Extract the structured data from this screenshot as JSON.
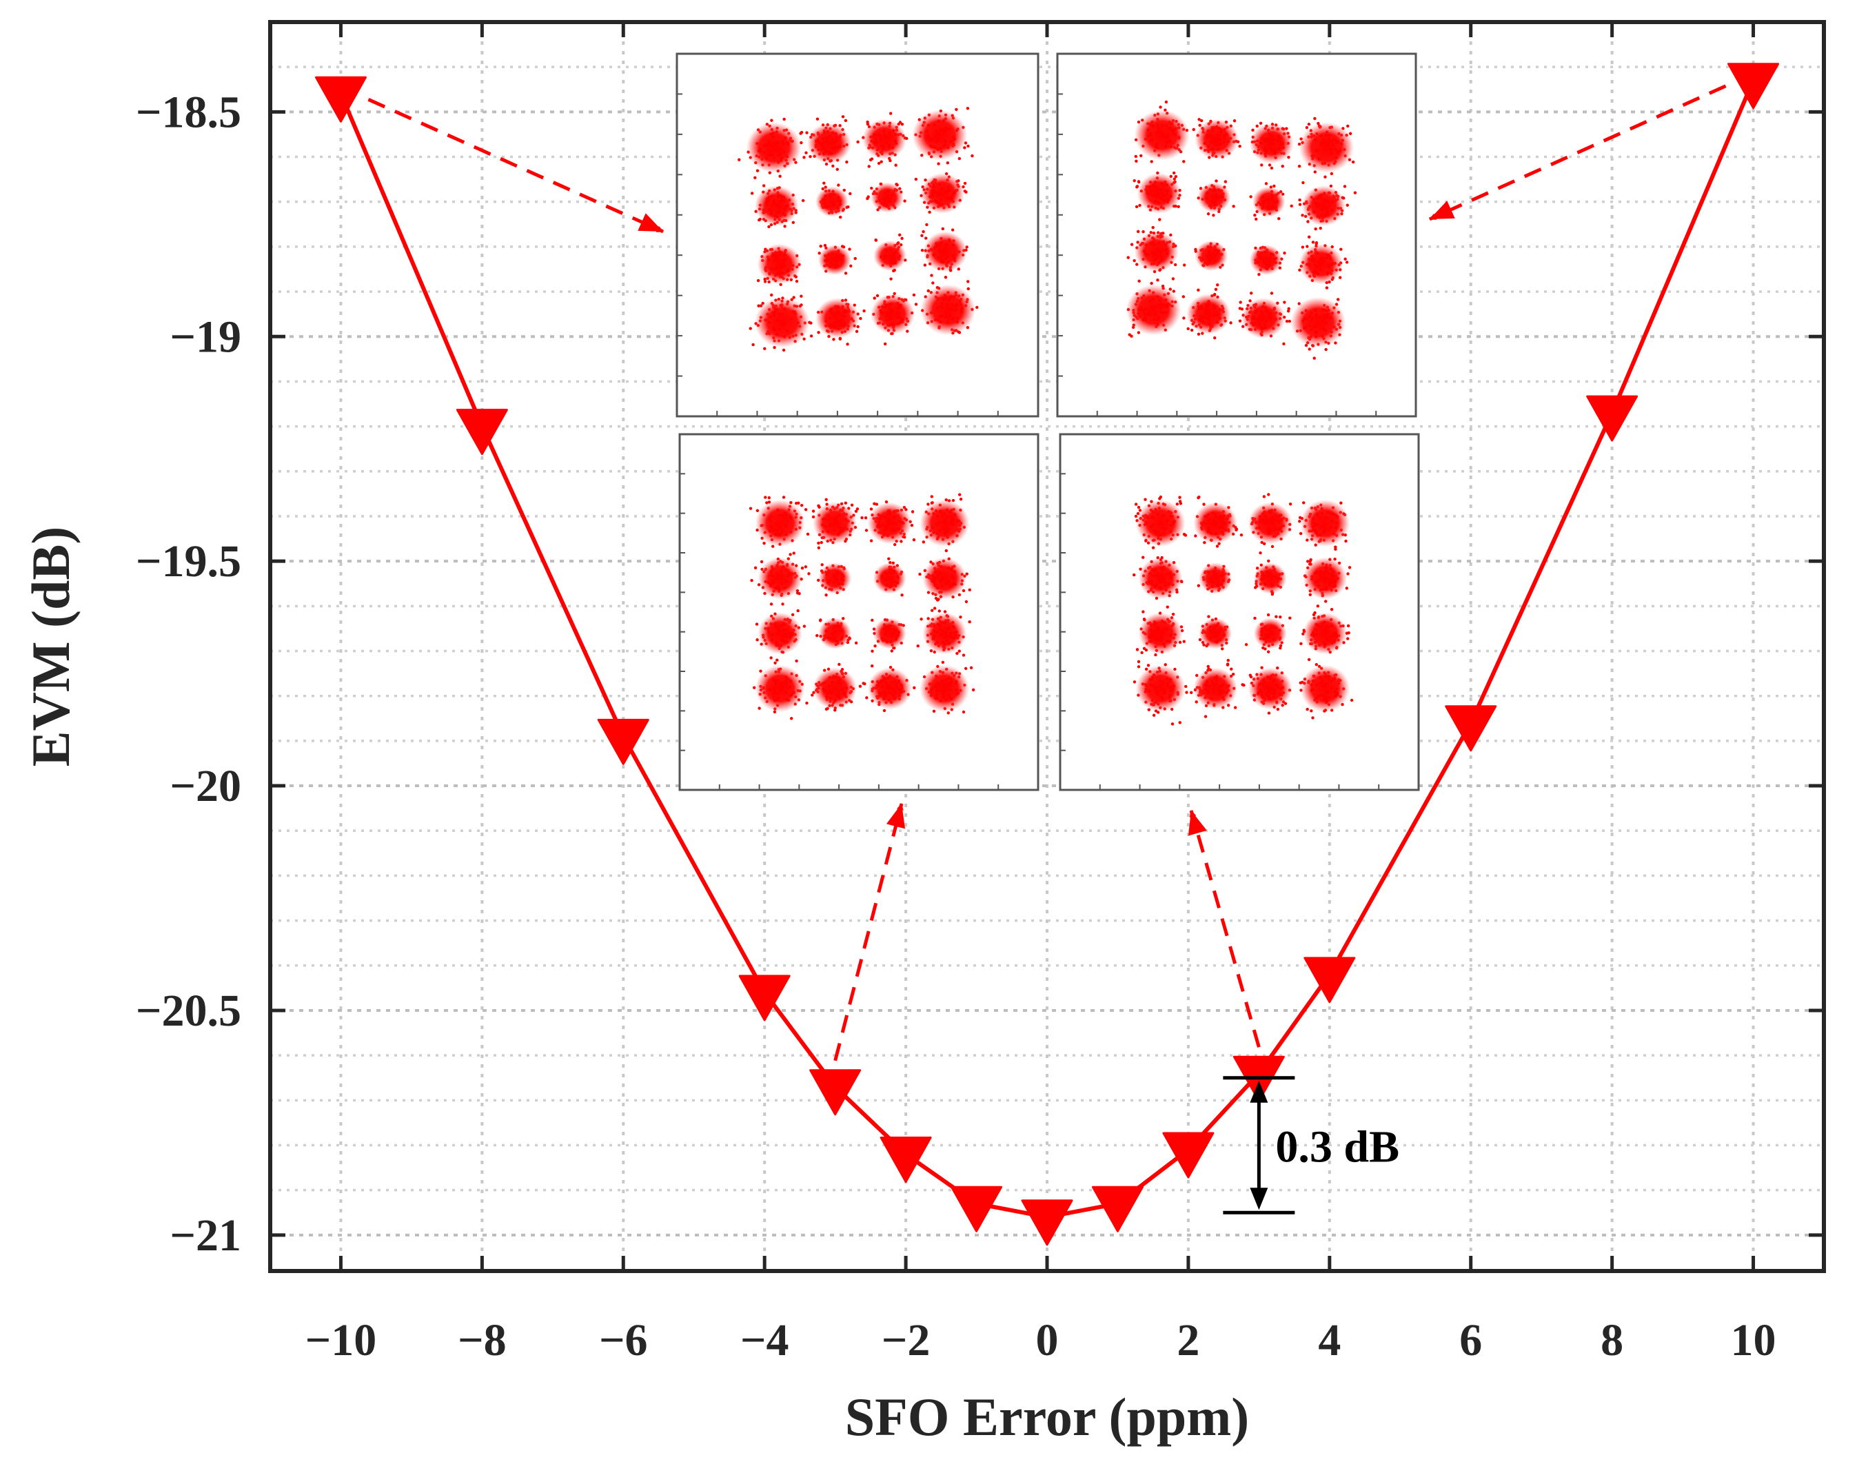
{
  "chart_data": {
    "type": "line",
    "title": "",
    "xlabel": "SFO Error (ppm)",
    "ylabel": "EVM (dB)",
    "xlim": [
      -11,
      11
    ],
    "ylim": [
      -21.08,
      -18.3
    ],
    "x_ticks": [
      -10,
      -8,
      -6,
      -4,
      -2,
      0,
      2,
      4,
      6,
      8,
      10
    ],
    "x_tick_labels": [
      "−10",
      "−8",
      "−6",
      "−4",
      "−2",
      "0",
      "2",
      "4",
      "6",
      "8",
      "10"
    ],
    "y_ticks": [
      -21,
      -20.5,
      -20,
      -19.5,
      -19,
      -18.5
    ],
    "y_tick_labels": [
      "−21",
      "−20.5",
      "−20",
      "−19.5",
      "−19",
      "−18.5"
    ],
    "grid": true,
    "series": [
      {
        "name": "EVM",
        "color": "#ff0000",
        "marker": "triangle-down",
        "x": [
          -10,
          -8,
          -6,
          -4,
          -3,
          -2,
          -1,
          0,
          1,
          2,
          3,
          4,
          6,
          8,
          10
        ],
        "y": [
          -18.46,
          -19.2,
          -19.89,
          -20.46,
          -20.67,
          -20.82,
          -20.93,
          -20.96,
          -20.93,
          -20.81,
          -20.64,
          -20.42,
          -19.86,
          -19.17,
          -18.43
        ]
      }
    ],
    "annotations": [
      {
        "type": "range",
        "label": "0.3 dB",
        "x": 3.0,
        "y_top": -20.65,
        "y_bottom": -20.95,
        "color": "#000000"
      }
    ],
    "insets": [
      {
        "name": "constellation-16qam",
        "points_to_x": -10,
        "points_to_y": -18.46,
        "distortion": "skewed"
      },
      {
        "name": "constellation-16qam",
        "points_to_x": 10,
        "points_to_y": -18.43,
        "distortion": "skewed"
      },
      {
        "name": "constellation-16qam",
        "points_to_x": -3,
        "points_to_y": -20.67,
        "distortion": "clean"
      },
      {
        "name": "constellation-16qam",
        "points_to_x": 3,
        "points_to_y": -20.64,
        "distortion": "clean"
      }
    ]
  }
}
